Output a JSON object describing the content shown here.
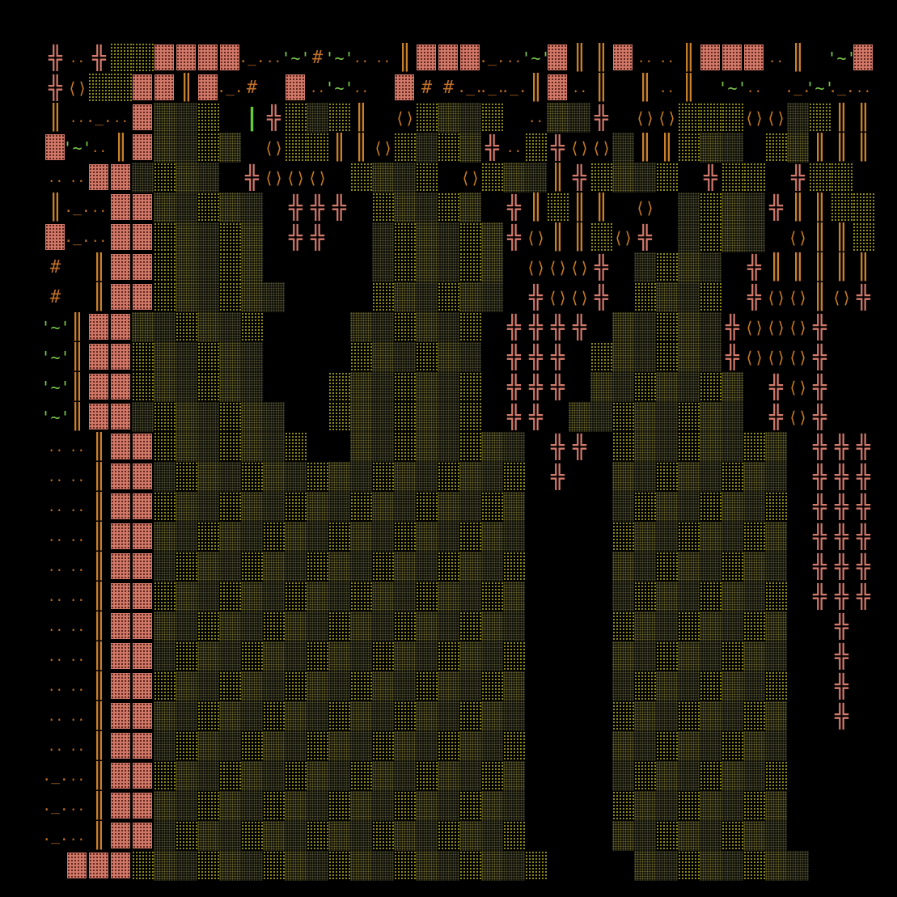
{
  "screen": {
    "title": "",
    "legend": {
      "wall": "▓",
      "hatch": "░",
      "block": "■",
      "tree": "╬",
      "vine": "|",
      "bracket": "⟨⟩",
      "pipe": "║",
      "face": "'~'",
      "hash": "#",
      "dots": "..",
      "under": "._."
    },
    "colors": {
      "background": "#000000",
      "wall": "#d07868",
      "hatch_light": "#a6a01f",
      "hatch_heavy": "#6f6a30",
      "block": "#b87814",
      "tree": "#d47a6c",
      "vine": "#66cc33",
      "ochre": "#c87a20"
    },
    "rows": [
      "T.TLLWWWW_.F#F..PWWW_.FWPPW..PWWW.P'FW___FWW",
      "T<>LLWWPW_# W.F. W##___PW.P'P.P'F. _F_.PP.",
      "P._.WHHHB|TLDLPB<>LHHHB.HDTB<><>LLL<><>HHPPHPPHP<>",
      "WF.PWHHHHB<>LLPP<>LHHHT.LT<><>HPPHHHBHHPPPPLPP",
      "..WWHHHHBT<><><>BHHHHB<>LHHPTHHHHBTLLBTLLBT",
      "P_.WWHHHHHBTTTBHHHHHBTPLPPB<>BHHHHTPPLLHPP",
      "W_.WWHHHHHBTTBBHHHHHHT<>PPL<>TBHHHHB<>PPLP<>",
      "# PWWHHHHHBBBBBHHHHHHB<><><>TBHHHHBTPPPPPT",
      "# PWWHHHHHHBBBBHHHHHHBT<><>TBHHHHBT<><>P<>T",
      "FPWWHHHHHHBBBBHHHHHHBTTTTBHHHHHT<><><>T",
      "FPWWHHHHHHBBBBHHHHHHBTTTBHHHHHHT<><><>T",
      "FPWWHHHHHHBBBHHHHHHHBTTTBHHHHHHHBT<>T",
      "FPWWHHHHHHHBBHHHHHHHBTTBHHHHHHHHBT<>T",
      "..PWWHHHHHHHBBHHHHHHHHBTTBHHHHHHHHBTTT",
      "..PWWHHHHHHHHHHHHHHHHHBTBBHHHHHHHHBTTT",
      "..PWWHHHHHHHHHHHHHHHHHBBBBHHHHHHHHBTTT",
      "..PWWHHHHHHHHHHHHHHHHHBBBBHHHHHHHHBTTT",
      "..PWWHHHHHHHHHHHHHHHHHBBBBHHHHHHHHBTTT",
      "..PWWHHHHHHHHHHHHHHHHHBBBBHHHHHHHHBTTT",
      "..PWWHHHHHHHHHHHHHHHHHBBBBHHHHHHHHBBTBB",
      "..PWWHHHHHHHHHHHHHHHHHBBBBHHHHHHHHBBTBB",
      "..PWWHHHHHHHHHHHHHHHHHBBBBHHHHHHHHBBTBB",
      "..PWWHHHHHHHHHHHHHHHHHBBBBHHHHHHHHBBTBB",
      "..PWWHHHHHHHHHHHHHHHHHBBBBHHHHHHHHBBBBB",
      "_.PWWHHHHHHHHHHHHHHHHHBBBBHHHHHHHHBBBBB",
      "_.PWWHHHHHHHHHHHHHHHHHBBBBHHHHHHHHBBBBB",
      "_.PWWHHHHHHHHHHHHHHHHHBBBBHHHHHHHHBBBBB",
      " WWWHHHHHHHHHHHHHHHHHHHBBBBHHHHHHHHBBBBB"
    ]
  }
}
